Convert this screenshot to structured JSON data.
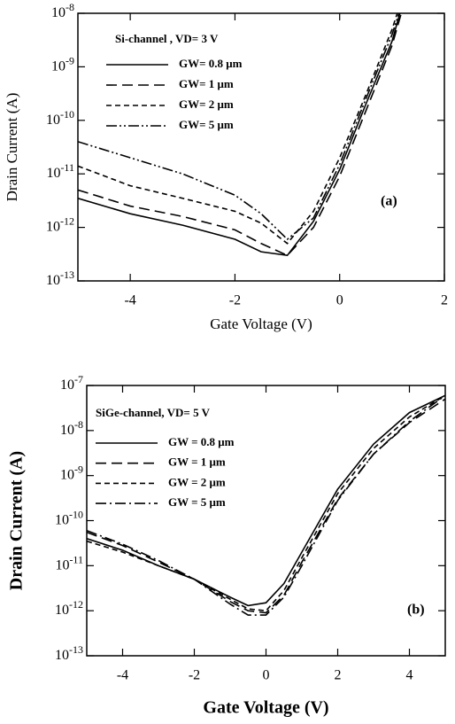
{
  "chart_data": [
    {
      "type": "line",
      "ylog": true,
      "legend": "upper left",
      "legend_title": "Si-channel , VD= 3 V",
      "annotation": "(a)",
      "xlabel": "Gate Voltage (V)",
      "ylabel": "Drain Current (A)",
      "xlim": [
        -5,
        2
      ],
      "xticks": [
        -4,
        -2,
        0,
        2
      ],
      "ylim": [
        1e-13,
        1e-08
      ],
      "yticks": [
        {
          "value": 1e-13,
          "label": "10-13"
        },
        {
          "value": 1e-12,
          "label": "10-12"
        },
        {
          "value": 1e-11,
          "label": "10-11"
        },
        {
          "value": 1e-10,
          "label": "10-10"
        },
        {
          "value": 1e-09,
          "label": "10-9"
        },
        {
          "value": 1e-08,
          "label": "10-8"
        }
      ],
      "x": [
        -5,
        -4,
        -3,
        -2,
        -1.5,
        -1,
        -0.5,
        0,
        0.5,
        1,
        1.2
      ],
      "series": [
        {
          "name": "GW= 0.8 μm",
          "color": "#000000",
          "dash": "solid",
          "values": [
            3.5e-12,
            1.8e-12,
            1.1e-12,
            6e-13,
            3.5e-13,
            3e-13,
            1.3e-12,
            1.2e-11,
            2e-10,
            3e-09,
            1.5e-08
          ]
        },
        {
          "name": "GW= 1 μm",
          "color": "#000000",
          "dash": "long",
          "values": [
            5e-12,
            2.5e-12,
            1.6e-12,
            9e-13,
            5e-13,
            3e-13,
            1e-12,
            9e-12,
            1.5e-10,
            2.5e-09,
            1.2e-08
          ]
        },
        {
          "name": "GW= 2 μm",
          "color": "#000000",
          "dash": "short",
          "values": [
            1.4e-11,
            6e-12,
            3.5e-12,
            2e-12,
            1.2e-12,
            5e-13,
            2e-12,
            2e-11,
            3e-10,
            5e-09,
            2e-08
          ]
        },
        {
          "name": "GW= 5 μm",
          "color": "#000000",
          "dash": "dashdotdot",
          "values": [
            4e-11,
            2e-11,
            1e-11,
            4e-12,
            1.8e-12,
            6e-13,
            1.5e-12,
            1.5e-11,
            2.5e-10,
            4e-09,
            1.6e-08
          ]
        }
      ]
    },
    {
      "type": "line",
      "ylog": true,
      "legend": "upper left",
      "legend_title": "SiGe-channel, VD= 5 V",
      "annotation": "(b)",
      "xlabel": "Gate Voltage (V)",
      "ylabel": "Drain Current (A)",
      "xlim": [
        -5,
        5
      ],
      "xticks": [
        -4,
        -2,
        0,
        2,
        4
      ],
      "ylim": [
        1e-13,
        1e-07
      ],
      "yticks": [
        {
          "value": 1e-13,
          "label": "10-13"
        },
        {
          "value": 1e-12,
          "label": "10-12"
        },
        {
          "value": 1e-11,
          "label": "10-11"
        },
        {
          "value": 1e-10,
          "label": "10-10"
        },
        {
          "value": 1e-09,
          "label": "10-9"
        },
        {
          "value": 1e-08,
          "label": "10-8"
        },
        {
          "value": 1e-07,
          "label": "10-7"
        }
      ],
      "x": [
        -5,
        -4,
        -3,
        -2,
        -1,
        -0.5,
        0,
        0.5,
        1,
        2,
        3,
        4,
        5
      ],
      "series": [
        {
          "name": "GW = 0.8 μm",
          "color": "#000000",
          "dash": "solid",
          "values": [
            4e-11,
            2.2e-11,
            1e-11,
            5e-12,
            2e-12,
            1.3e-12,
            1.5e-12,
            4e-12,
            2e-11,
            5e-10,
            5e-09,
            2.5e-08,
            6e-08
          ]
        },
        {
          "name": "GW = 1 μm",
          "color": "#000000",
          "dash": "long",
          "values": [
            5.5e-11,
            2.8e-11,
            1.2e-11,
            5e-12,
            1.6e-12,
            1e-12,
            9e-13,
            2.2e-12,
            1.2e-11,
            3e-10,
            3e-09,
            1.5e-08,
            5e-08
          ]
        },
        {
          "name": "GW = 2 μm",
          "color": "#000000",
          "dash": "short",
          "values": [
            3.5e-11,
            2e-11,
            1e-11,
            5e-12,
            1.8e-12,
            1.1e-12,
            1e-12,
            2.8e-12,
            1.5e-11,
            4e-10,
            4e-09,
            2e-08,
            6e-08
          ]
        },
        {
          "name": "GW = 5 μm",
          "color": "#000000",
          "dash": "dashdot",
          "values": [
            6e-11,
            3e-11,
            1.3e-11,
            5e-12,
            1.4e-12,
            8e-13,
            8e-13,
            2e-12,
            1e-11,
            2.8e-10,
            3e-09,
            1.6e-08,
            6e-08
          ]
        }
      ]
    }
  ]
}
